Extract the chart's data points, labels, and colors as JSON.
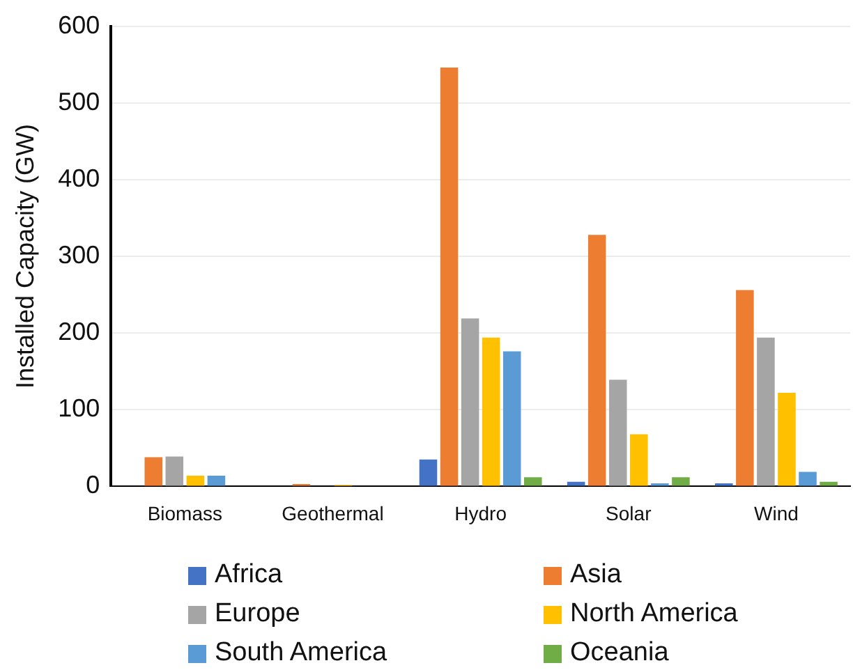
{
  "chart_data": {
    "type": "bar",
    "ylabel": "Installed Capacity (GW)",
    "categories": [
      "Biomass",
      "Geothermal",
      "Hydro",
      "Solar",
      "Wind"
    ],
    "series": [
      {
        "name": "Africa",
        "color": "#4472c4",
        "values": [
          0,
          0,
          35,
          6,
          4
        ]
      },
      {
        "name": "Asia",
        "color": "#ed7d31",
        "values": [
          38,
          3,
          546,
          328,
          256
        ]
      },
      {
        "name": "Europe",
        "color": "#a5a5a5",
        "values": [
          39,
          0,
          219,
          139,
          194
        ]
      },
      {
        "name": "North America",
        "color": "#ffc000",
        "values": [
          14,
          2,
          194,
          68,
          122
        ]
      },
      {
        "name": "South America",
        "color": "#5b9bd5",
        "values": [
          14,
          0,
          176,
          4,
          19
        ]
      },
      {
        "name": "Oceania",
        "color": "#70ad47",
        "values": [
          0,
          0,
          12,
          12,
          6
        ]
      }
    ],
    "ylim": [
      0,
      600
    ],
    "yticks": [
      0,
      100,
      200,
      300,
      400,
      500,
      600
    ],
    "grid": "y",
    "legend": "bottom"
  }
}
